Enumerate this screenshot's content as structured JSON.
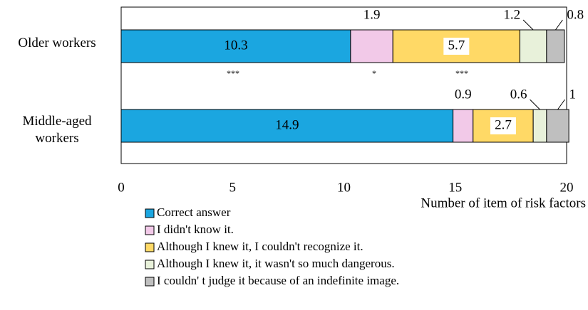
{
  "chart_data": {
    "type": "stacked_bar_horizontal",
    "categories": [
      "Older workers",
      "Middle-aged workers"
    ],
    "series": [
      {
        "name": "Correct answer",
        "color": "#1ba6e0",
        "values": [
          10.3,
          14.9
        ]
      },
      {
        "name": "I didn't know it.",
        "color": "#f2c9e8",
        "values": [
          1.9,
          0.9
        ]
      },
      {
        "name": "Although I knew it, I couldn't recognize it.",
        "color": "#ffd966",
        "values": [
          5.7,
          2.7
        ]
      },
      {
        "name": "Although I knew it, it wasn't so much dangerous.",
        "color": "#e8f1da",
        "values": [
          1.2,
          0.6
        ]
      },
      {
        "name": "I couldn' t judge it because of an indefinite image.",
        "color": "#bfbfbf",
        "values": [
          0.8,
          1.0
        ]
      }
    ],
    "xlim": [
      0,
      20
    ],
    "xticks": [
      0,
      5,
      10,
      15,
      20
    ],
    "xlabel": "Number of item of risk factors",
    "annotations": [
      "***",
      "*",
      "***"
    ]
  }
}
